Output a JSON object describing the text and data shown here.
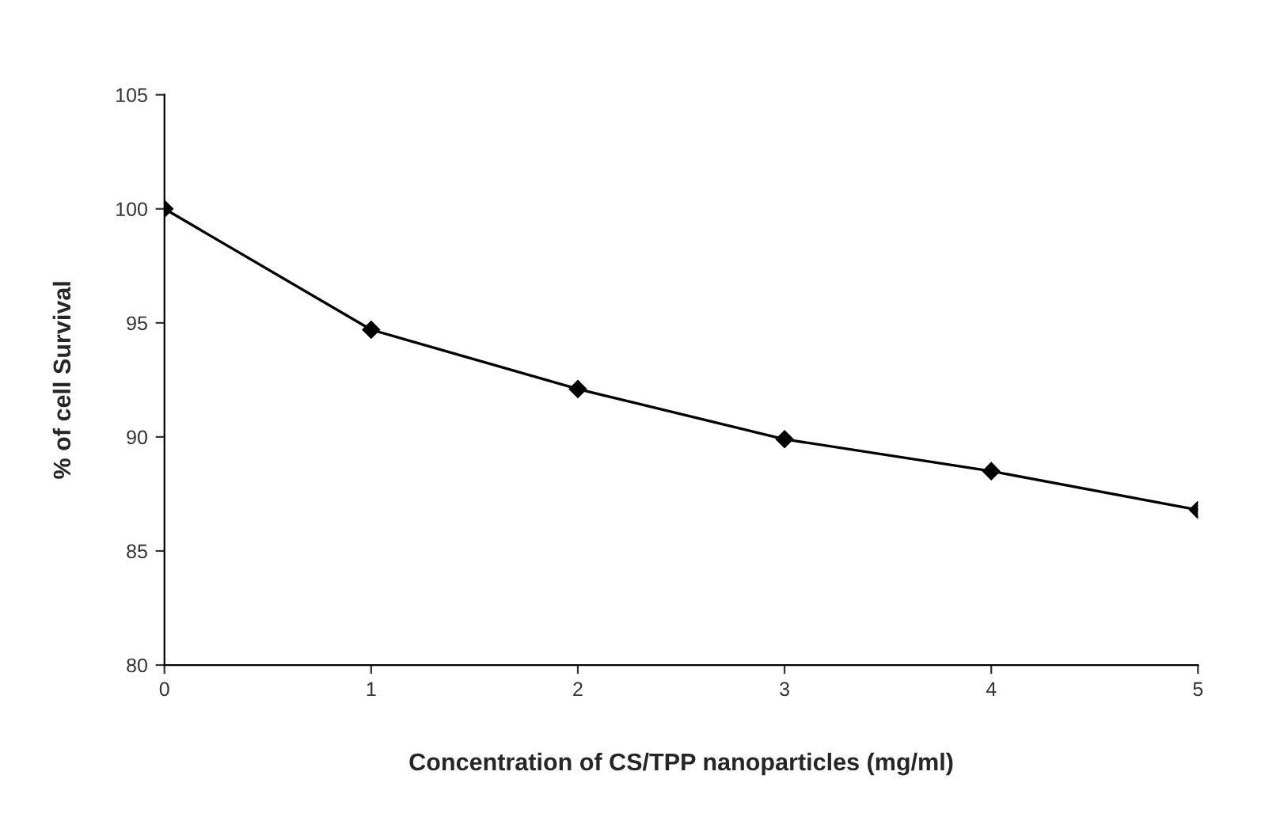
{
  "chart_data": {
    "type": "line",
    "xlabel": "Concentration of CS/TPP nanoparticles (mg/ml)",
    "ylabel": "% of cell Survival",
    "x": [
      0,
      1,
      2,
      3,
      4,
      5
    ],
    "series": [
      {
        "color": "#000000",
        "values": [
          100,
          94.7,
          92.1,
          89.9,
          88.5,
          86.8
        ]
      }
    ],
    "xlim": [
      0,
      5
    ],
    "xticks": [
      0,
      1,
      2,
      3,
      4,
      5
    ],
    "ylim": [
      80,
      105
    ],
    "yticks": [
      80,
      85,
      90,
      95,
      100,
      105
    ],
    "marker": "diamond",
    "line_style": "solid",
    "grid": false,
    "legend": false
  }
}
